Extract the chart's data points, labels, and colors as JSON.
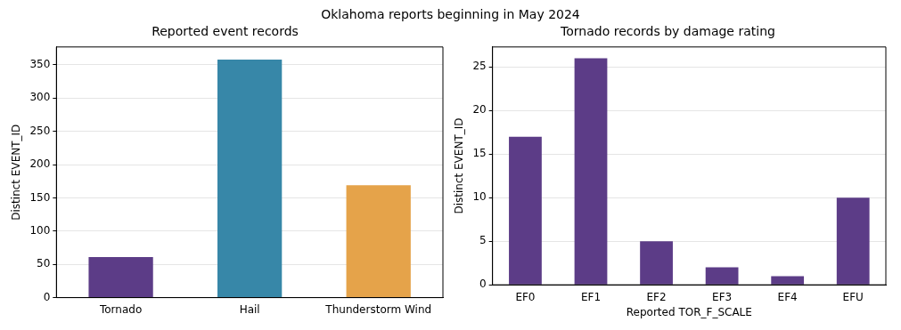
{
  "chart_data": [
    {
      "type": "other",
      "title": "Oklahoma reports beginning in May 2024"
    },
    {
      "type": "bar",
      "title": "Reported event records",
      "ylabel": "Distinct EVENT_ID",
      "categories": [
        "Tornado",
        "Hail",
        "Thunderstorm Wind"
      ],
      "values": [
        61,
        358,
        169
      ],
      "colors": [
        "#5c3c87",
        "#3787a8",
        "#e5a34a"
      ],
      "ylim": [
        0,
        377
      ],
      "yticks": [
        0,
        50,
        100,
        150,
        200,
        250,
        300,
        350
      ],
      "grid": "y",
      "legend": false
    },
    {
      "type": "bar",
      "title": "Tornado records by damage rating",
      "xlabel": "Reported TOR_F_SCALE",
      "ylabel": "Distinct EVENT_ID",
      "categories": [
        "EF0",
        "EF1",
        "EF2",
        "EF3",
        "EF4",
        "EFU"
      ],
      "values": [
        17,
        26,
        5,
        2,
        1,
        10
      ],
      "color": "#5c3c87",
      "ylim": [
        0,
        27.3
      ],
      "yticks": [
        0,
        5,
        10,
        15,
        20,
        25
      ],
      "grid": "y",
      "legend": false
    }
  ]
}
